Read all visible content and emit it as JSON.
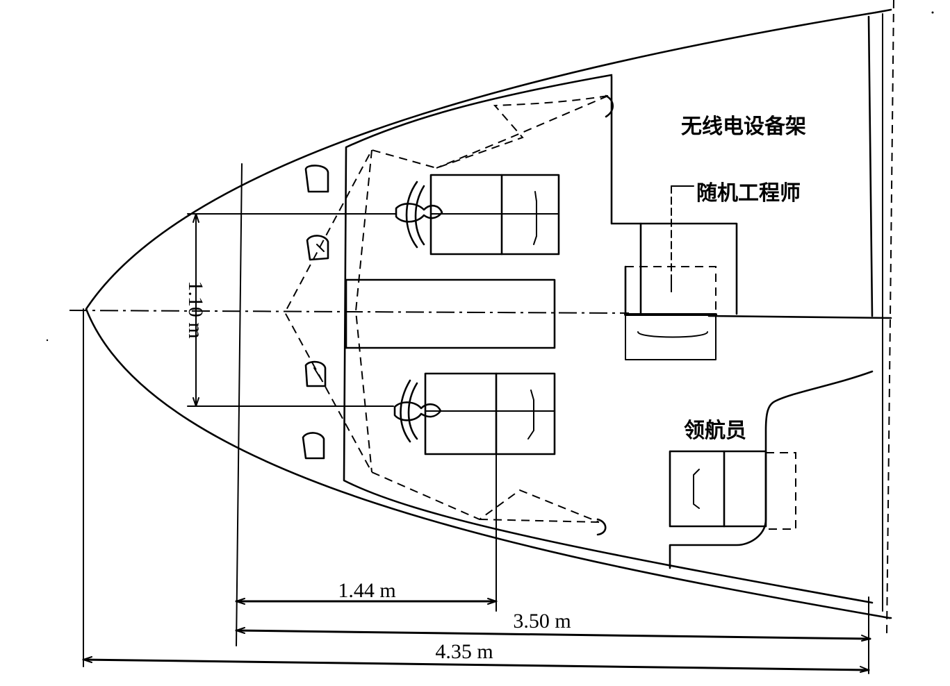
{
  "labels": {
    "radio_rack": "无线电设备架",
    "flight_engineer": "随机工程师",
    "navigator": "领航员"
  },
  "dimensions": {
    "seat_spacing": "1.10 m",
    "eye_point_distance": "1.44 m",
    "cockpit_length": "3.50 m",
    "overall_length": "4.35 m"
  }
}
